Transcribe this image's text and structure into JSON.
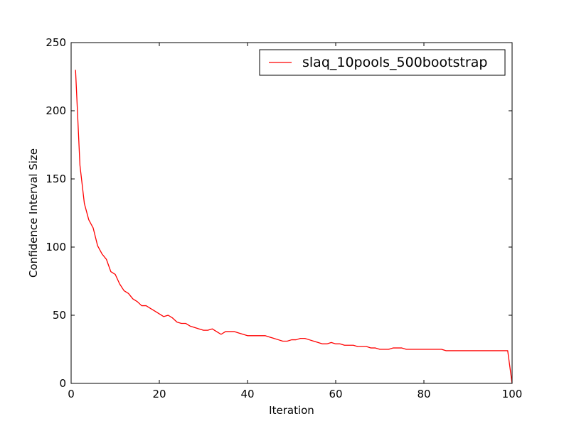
{
  "chart_data": {
    "type": "line",
    "title": "",
    "xlabel": "Iteration",
    "ylabel": "Confidence Interval Size",
    "xlim": [
      0,
      100
    ],
    "ylim": [
      0,
      250
    ],
    "xticks": [
      0,
      20,
      40,
      60,
      80,
      100
    ],
    "yticks": [
      0,
      50,
      100,
      150,
      200,
      250
    ],
    "grid": false,
    "legend_position": "top-right",
    "series": [
      {
        "name": "slaq_10pools_500bootstrap",
        "color": "#ff0000",
        "x": [
          1,
          2,
          3,
          4,
          5,
          6,
          7,
          8,
          9,
          10,
          11,
          12,
          13,
          14,
          15,
          16,
          17,
          18,
          19,
          20,
          21,
          22,
          23,
          24,
          25,
          26,
          27,
          28,
          29,
          30,
          31,
          32,
          33,
          34,
          35,
          36,
          37,
          38,
          39,
          40,
          41,
          42,
          43,
          44,
          45,
          46,
          47,
          48,
          49,
          50,
          51,
          52,
          53,
          54,
          55,
          56,
          57,
          58,
          59,
          60,
          61,
          62,
          63,
          64,
          65,
          66,
          67,
          68,
          69,
          70,
          71,
          72,
          73,
          74,
          75,
          76,
          77,
          78,
          79,
          80,
          81,
          82,
          83,
          84,
          85,
          86,
          87,
          88,
          89,
          90,
          91,
          92,
          93,
          94,
          95,
          96,
          97,
          98,
          99,
          100
        ],
        "y": [
          230,
          160,
          132,
          120,
          114,
          101,
          95,
          91,
          82,
          80,
          73,
          68,
          66,
          62,
          60,
          57,
          57,
          55,
          53,
          51,
          49,
          50,
          48,
          45,
          44,
          44,
          42,
          41,
          40,
          39,
          39,
          40,
          38,
          36,
          38,
          38,
          38,
          37,
          36,
          35,
          35,
          35,
          35,
          35,
          34,
          33,
          32,
          31,
          31,
          32,
          32,
          33,
          33,
          32,
          31,
          30,
          29,
          29,
          30,
          29,
          29,
          28,
          28,
          28,
          27,
          27,
          27,
          26,
          26,
          25,
          25,
          25,
          26,
          26,
          26,
          25,
          25,
          25,
          25,
          25,
          25,
          25,
          25,
          25,
          24,
          24,
          24,
          24,
          24,
          24,
          24,
          24,
          24,
          24,
          24,
          24,
          24,
          24,
          24,
          0
        ]
      }
    ]
  }
}
